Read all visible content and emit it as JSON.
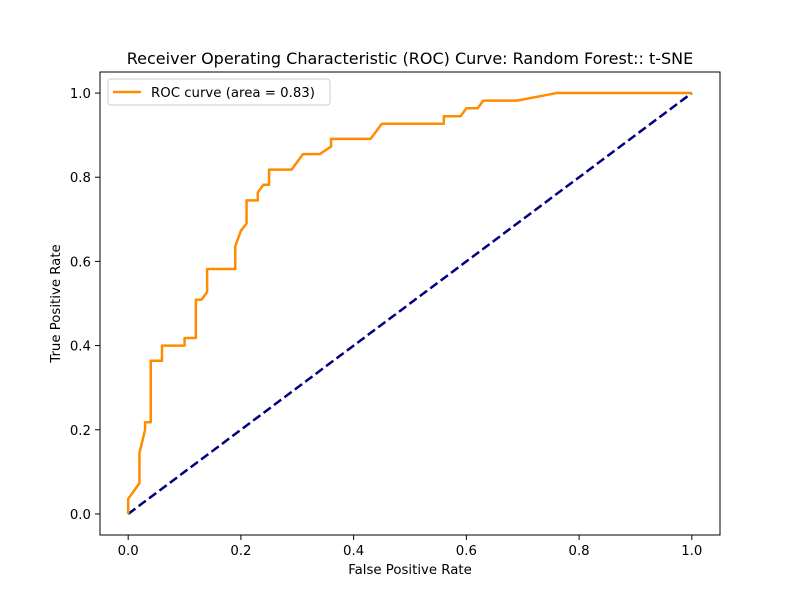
{
  "chart_data": {
    "type": "line",
    "title": "Receiver Operating Characteristic (ROC) Curve: Random Forest:: t-SNE",
    "xlabel": "False Positive Rate",
    "ylabel": "True Positive Rate",
    "xlim": [
      -0.05,
      1.05
    ],
    "ylim": [
      -0.05,
      1.05
    ],
    "xticks": [
      0.0,
      0.2,
      0.4,
      0.6,
      0.8,
      1.0
    ],
    "yticks": [
      0.0,
      0.2,
      0.4,
      0.6,
      0.8,
      1.0
    ],
    "xtick_labels": [
      "0.0",
      "0.2",
      "0.4",
      "0.6",
      "0.8",
      "1.0"
    ],
    "ytick_labels": [
      "0.0",
      "0.2",
      "0.4",
      "0.6",
      "0.8",
      "1.0"
    ],
    "grid": false,
    "legend_position": "upper-left",
    "series": [
      {
        "name": "ROC curve (area = 0.83)",
        "color": "#ff8c00",
        "style": "solid",
        "x": [
          0.0,
          0.0,
          0.02,
          0.02,
          0.03,
          0.03,
          0.04,
          0.04,
          0.06,
          0.06,
          0.1,
          0.1,
          0.12,
          0.12,
          0.13,
          0.14,
          0.14,
          0.19,
          0.19,
          0.2,
          0.21,
          0.21,
          0.23,
          0.23,
          0.24,
          0.25,
          0.25,
          0.29,
          0.31,
          0.34,
          0.36,
          0.36,
          0.43,
          0.45,
          0.45,
          0.56,
          0.56,
          0.59,
          0.6,
          0.62,
          0.63,
          0.64,
          0.69,
          0.76,
          0.77,
          1.0
        ],
        "y": [
          0.0,
          0.036,
          0.073,
          0.145,
          0.2,
          0.218,
          0.218,
          0.364,
          0.364,
          0.4,
          0.4,
          0.418,
          0.418,
          0.509,
          0.509,
          0.527,
          0.582,
          0.582,
          0.636,
          0.673,
          0.69,
          0.745,
          0.745,
          0.764,
          0.782,
          0.782,
          0.818,
          0.818,
          0.855,
          0.855,
          0.873,
          0.891,
          0.891,
          0.927,
          0.927,
          0.927,
          0.945,
          0.945,
          0.964,
          0.964,
          0.982,
          0.982,
          0.982,
          1.0,
          1.0,
          1.0
        ]
      },
      {
        "name": "",
        "color": "#000080",
        "style": "dashed",
        "x": [
          0.0,
          1.0
        ],
        "y": [
          0.0,
          1.0
        ]
      }
    ],
    "legend": [
      {
        "label": "ROC curve (area = 0.83)",
        "color": "#ff8c00"
      }
    ]
  }
}
